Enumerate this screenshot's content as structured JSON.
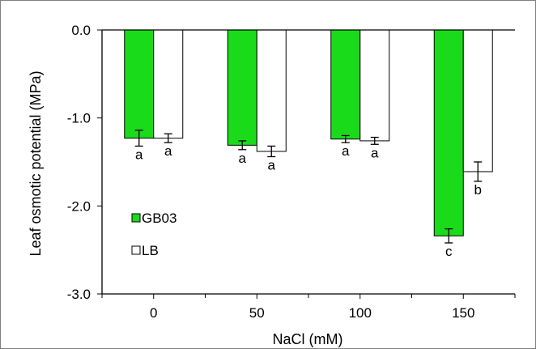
{
  "chart_data": {
    "type": "bar",
    "xlabel": "NaCl (mM)",
    "ylabel": "Leaf osmotic potential (MPa)",
    "categories": [
      "0",
      "50",
      "100",
      "150"
    ],
    "ylim": [
      -3.0,
      0.0
    ],
    "yticks": [
      "0.0",
      "-1.0",
      "-2.0",
      "-3.0"
    ],
    "ytick_values": [
      0.0,
      -1.0,
      -2.0,
      -3.0
    ],
    "grid": false,
    "legend_position": "left-middle",
    "series": [
      {
        "name": "GB03",
        "color": "#1adb1a",
        "values": [
          -1.23,
          -1.31,
          -1.24,
          -2.34
        ],
        "errors": [
          0.09,
          0.05,
          0.04,
          0.08
        ],
        "labels": [
          "a",
          "a",
          "a",
          "c"
        ]
      },
      {
        "name": "LB",
        "color": "#ffffff",
        "values": [
          -1.23,
          -1.38,
          -1.26,
          -1.61
        ],
        "errors": [
          0.05,
          0.06,
          0.04,
          0.11
        ],
        "labels": [
          "a",
          "a",
          "a",
          "b"
        ]
      }
    ]
  }
}
